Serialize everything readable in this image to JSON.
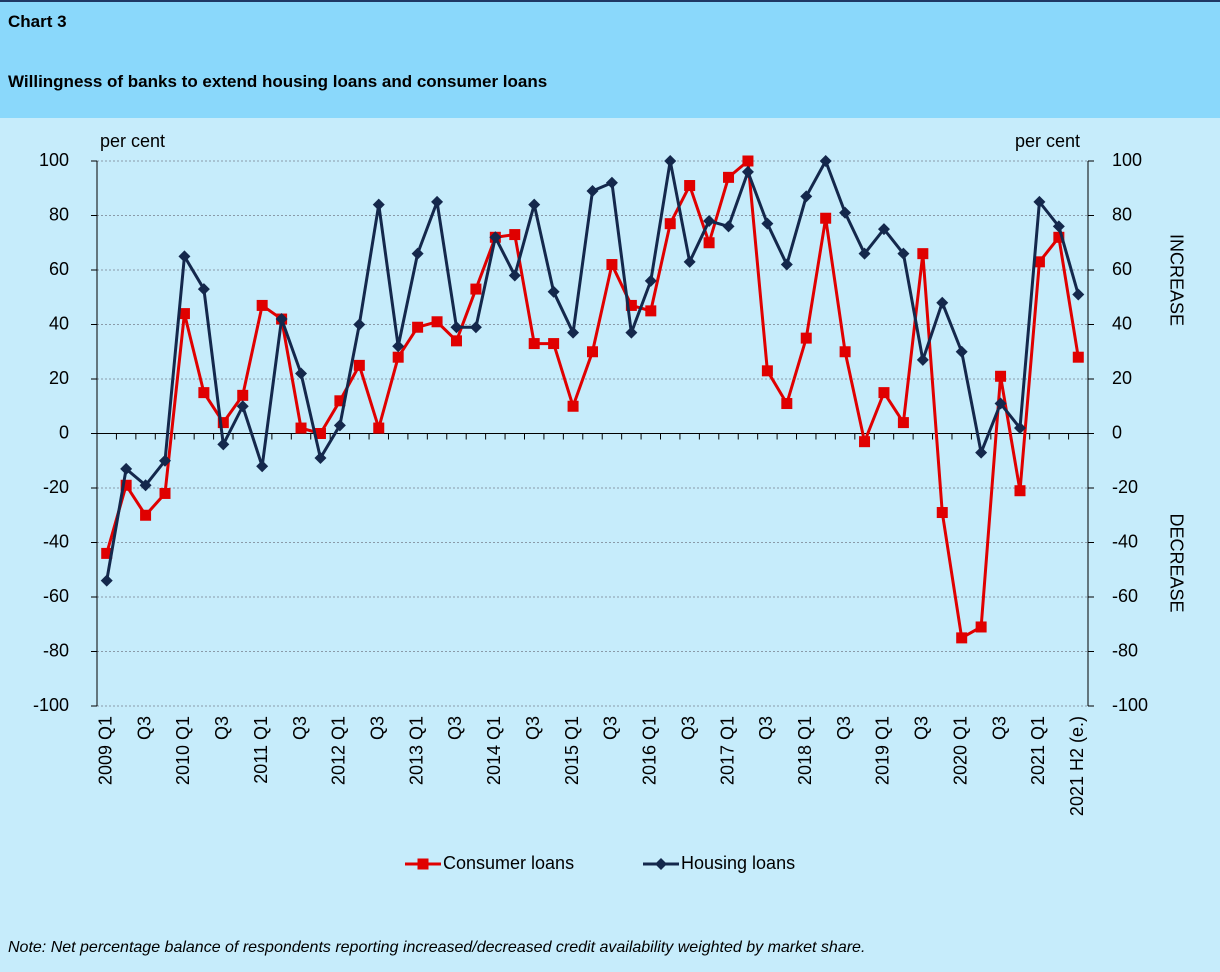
{
  "chart_data": {
    "type": "line",
    "label": "Chart 3",
    "title": "Willingness of banks to extend housing loans and consumer loans",
    "y_axis_label": "per cent",
    "y2_axis_label": "per cent",
    "annotations": [
      "INCREASE",
      "DECREASE"
    ],
    "note": "Note: Net percentage balance of respondents reporting increased/decreased credit availability weighted by market share.",
    "categories": [
      "2009 Q1",
      null,
      "Q3",
      null,
      "2010 Q1",
      null,
      "Q3",
      null,
      "2011 Q1",
      null,
      "Q3",
      null,
      "2012 Q1",
      null,
      "Q3",
      null,
      "2013 Q1",
      null,
      "Q3",
      null,
      "2014 Q1",
      null,
      "Q3",
      null,
      "2015 Q1",
      null,
      "Q3",
      null,
      "2016 Q1",
      null,
      "Q3",
      null,
      "2017 Q1",
      null,
      "Q3",
      null,
      "2018 Q1",
      null,
      "Q3",
      null,
      "2019 Q1",
      null,
      "Q3",
      null,
      "2020 Q1",
      null,
      "Q3",
      null,
      "2021 Q1",
      null,
      "2021 H2 (e.)"
    ],
    "series": [
      {
        "name": "Consumer loans",
        "color": "#e00000",
        "marker": "square",
        "values": [
          -44,
          -19,
          -30,
          -22,
          44,
          15,
          4,
          14,
          47,
          42,
          2,
          0,
          12,
          25,
          2,
          28,
          39,
          41,
          34,
          53,
          72,
          73,
          33,
          33,
          10,
          30,
          62,
          47,
          45,
          77,
          91,
          70,
          94,
          100,
          23,
          11,
          35,
          79,
          30,
          -3,
          15,
          4,
          66,
          -29,
          -75,
          -71,
          21,
          -21,
          63,
          72,
          28
        ]
      },
      {
        "name": "Housing loans",
        "color": "#14284c",
        "marker": "diamond",
        "values": [
          -54,
          -13,
          -19,
          -10,
          65,
          53,
          -4,
          10,
          -12,
          42,
          22,
          -9,
          3,
          40,
          84,
          32,
          66,
          85,
          39,
          39,
          72,
          58,
          84,
          52,
          37,
          89,
          92,
          37,
          56,
          100,
          63,
          78,
          76,
          96,
          77,
          62,
          87,
          100,
          81,
          66,
          75,
          66,
          27,
          48,
          30,
          -7,
          11,
          2,
          85,
          76,
          51
        ]
      }
    ],
    "ylim": [
      -100,
      100
    ],
    "yticks": [
      -100,
      -80,
      -60,
      -40,
      -20,
      0,
      20,
      40,
      60,
      80,
      100
    ],
    "y2lim": [
      -100,
      100
    ],
    "y2ticks": [
      -100,
      -80,
      -60,
      -40,
      -20,
      0,
      20,
      40,
      60,
      80,
      100
    ],
    "grid": true,
    "legend": "bottom"
  }
}
